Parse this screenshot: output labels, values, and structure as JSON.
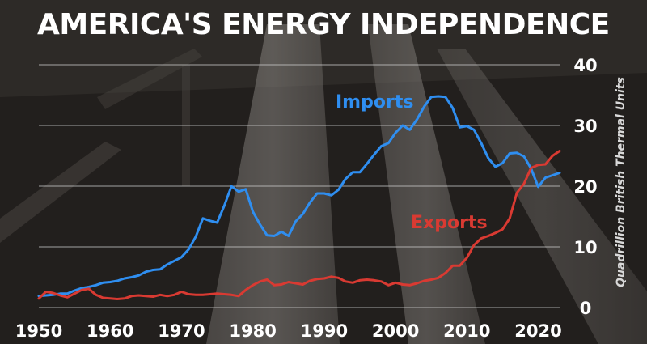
{
  "chart_data": {
    "type": "line",
    "title": "AMERICA'S ENERGY INDEPENDENCE",
    "xlabel": "",
    "ylabel": "Quadrillion British Thermal Units",
    "xlim": [
      1950,
      2023
    ],
    "ylim": [
      0,
      40
    ],
    "x_ticks": [
      1950,
      1960,
      1970,
      1980,
      1990,
      2000,
      2010,
      2020
    ],
    "y_ticks": [
      0,
      10,
      20,
      30,
      40
    ],
    "grid": "horizontal",
    "legend": "inline labels",
    "x": [
      1950,
      1951,
      1952,
      1953,
      1954,
      1955,
      1956,
      1957,
      1958,
      1959,
      1960,
      1961,
      1962,
      1963,
      1964,
      1965,
      1966,
      1967,
      1968,
      1969,
      1970,
      1971,
      1972,
      1973,
      1974,
      1975,
      1976,
      1977,
      1978,
      1979,
      1980,
      1981,
      1982,
      1983,
      1984,
      1985,
      1986,
      1987,
      1988,
      1989,
      1990,
      1991,
      1992,
      1993,
      1994,
      1995,
      1996,
      1997,
      1998,
      1999,
      2000,
      2001,
      2002,
      2003,
      2004,
      2005,
      2006,
      2007,
      2008,
      2009,
      2010,
      2011,
      2012,
      2013,
      2014,
      2015,
      2016,
      2017,
      2018,
      2019,
      2020,
      2021,
      2022,
      2023
    ],
    "series": [
      {
        "name": "Imports",
        "color": "#2f8ef0",
        "values": [
          1.9,
          2.0,
          2.1,
          2.3,
          2.3,
          2.8,
          3.2,
          3.4,
          3.7,
          4.1,
          4.2,
          4.4,
          4.8,
          5.0,
          5.3,
          5.9,
          6.2,
          6.3,
          7.1,
          7.7,
          8.3,
          9.6,
          11.7,
          14.7,
          14.3,
          14.0,
          16.8,
          20.0,
          19.1,
          19.5,
          15.8,
          13.7,
          11.9,
          11.8,
          12.5,
          11.8,
          14.2,
          15.4,
          17.3,
          18.8,
          18.8,
          18.5,
          19.4,
          21.2,
          22.3,
          22.3,
          23.7,
          25.2,
          26.6,
          27.1,
          28.8,
          30.0,
          29.3,
          31.0,
          33.1,
          34.7,
          34.8,
          34.7,
          32.9,
          29.7,
          29.9,
          29.3,
          27.1,
          24.6,
          23.2,
          23.8,
          25.4,
          25.5,
          24.9,
          22.9,
          19.9,
          21.4,
          21.8,
          22.2
        ]
      },
      {
        "name": "Exports",
        "color": "#d93a32",
        "values": [
          1.5,
          2.6,
          2.4,
          2.0,
          1.7,
          2.3,
          2.9,
          3.1,
          2.1,
          1.6,
          1.5,
          1.4,
          1.5,
          1.9,
          2.0,
          1.9,
          1.8,
          2.1,
          1.9,
          2.1,
          2.6,
          2.2,
          2.1,
          2.1,
          2.2,
          2.3,
          2.2,
          2.1,
          1.9,
          2.9,
          3.7,
          4.3,
          4.6,
          3.7,
          3.8,
          4.2,
          4.0,
          3.8,
          4.4,
          4.7,
          4.8,
          5.1,
          4.9,
          4.3,
          4.1,
          4.5,
          4.6,
          4.5,
          4.3,
          3.7,
          4.1,
          3.8,
          3.7,
          4.0,
          4.4,
          4.6,
          4.9,
          5.7,
          6.9,
          6.9,
          8.2,
          10.3,
          11.4,
          11.8,
          12.3,
          12.9,
          14.7,
          18.9,
          20.4,
          23.0,
          23.5,
          23.6,
          25.0,
          25.8
        ]
      }
    ]
  }
}
